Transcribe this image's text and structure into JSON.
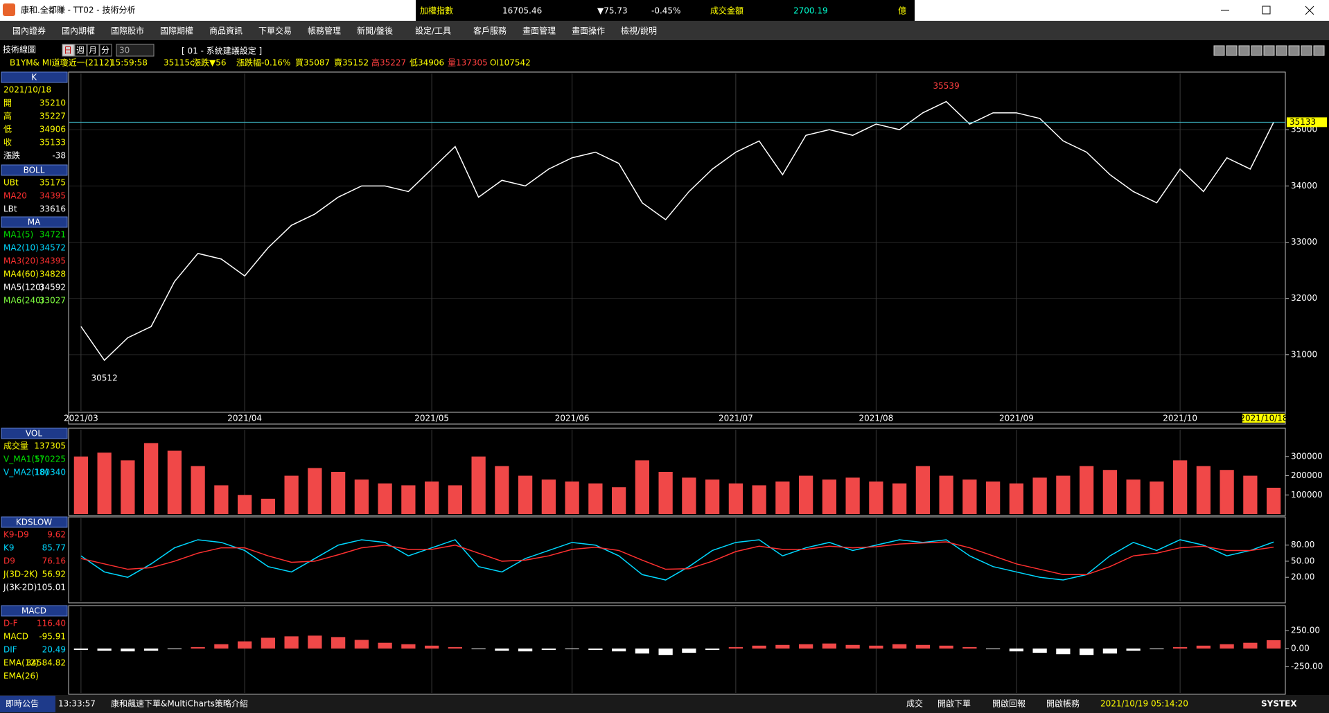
{
  "title_bar": {
    "app": "康和.全都賺 - TT02 - 技術分析"
  },
  "ticker": {
    "name": "加權指數",
    "index": "16705.46",
    "change": "▼75.73",
    "pct": "-0.45%",
    "turnover_label": "成交金額",
    "turnover": "2700.19",
    "unit": "億"
  },
  "menu": [
    "國內證券",
    "國內期權",
    "國際股市",
    "國際期權",
    "商品資訊",
    "下單交易",
    "帳務管理",
    "新聞/盤後",
    "設定/工具",
    "客戶服務",
    "畫面管理",
    "畫面操作",
    "檢視/說明"
  ],
  "info": {
    "panel_title": "技術線圖",
    "periods": [
      "日",
      "週",
      "月",
      "分"
    ],
    "interval": "30",
    "setting": "[ 01 - 系統建議設定 ]",
    "symbol": "B1YM&  MI道瓊近一(2112)",
    "time": "15:59:58",
    "fields": [
      "35115c",
      "漲跌▼56",
      "漲跌幅-0.16%",
      "買35087",
      "賣35152",
      "高35227",
      "低34906",
      "量137305",
      "OI107542"
    ]
  },
  "side_panel": [
    {
      "title": "K",
      "date": "2021/10/18",
      "rows": [
        {
          "label": "開",
          "value": "35210",
          "color": "#ffff00"
        },
        {
          "label": "高",
          "value": "35227",
          "color": "#ffff00"
        },
        {
          "label": "低",
          "value": "34906",
          "color": "#ffff00"
        },
        {
          "label": "收",
          "value": "35133",
          "color": "#ffff00"
        },
        {
          "label": "漲跌",
          "value": "-38",
          "color": "#ffffff"
        }
      ]
    },
    {
      "title": "BOLL",
      "rows": [
        {
          "label": "UBt",
          "value": "35175",
          "color": "#ffff00"
        },
        {
          "label": "MA20",
          "value": "34395",
          "color": "#ff3030"
        },
        {
          "label": "LBt",
          "value": "33616",
          "color": "#ffffff"
        }
      ]
    },
    {
      "title": "MA",
      "rows": [
        {
          "label": "MA1(5)",
          "value": "34721",
          "color": "#00e000"
        },
        {
          "label": "MA2(10)",
          "value": "34572",
          "color": "#00d8ff"
        },
        {
          "label": "MA3(20)",
          "value": "34395",
          "color": "#ff3030"
        },
        {
          "label": "MA4(60)",
          "value": "34828",
          "color": "#ffff00"
        },
        {
          "label": "MA5(120)",
          "value": "34592",
          "color": "#ffffff"
        },
        {
          "label": "MA6(240)",
          "value": "33027",
          "color": "#80ff40"
        }
      ]
    },
    {
      "title": "VOL",
      "rows": [
        {
          "label": "成交量",
          "value": "137305",
          "color": "#ffff00"
        },
        {
          "label": "V_MA1(5)",
          "value": "170225",
          "color": "#00e000"
        },
        {
          "label": "V_MA2(10)",
          "value": "180340",
          "color": "#00d8ff"
        }
      ]
    },
    {
      "title": "KDSLOW",
      "rows": [
        {
          "label": "K9-D9",
          "value": "9.62",
          "color": "#ff3030"
        },
        {
          "label": "K9",
          "value": "85.77",
          "color": "#00d8ff"
        },
        {
          "label": "D9",
          "value": "76.16",
          "color": "#ff3030"
        },
        {
          "label": "J(3D-2K)",
          "value": "56.92",
          "color": "#ffff00"
        },
        {
          "label": "J(3K-2D)",
          "value": "105.01",
          "color": "#ffffff"
        }
      ]
    },
    {
      "title": "MACD",
      "rows": [
        {
          "label": "D-F",
          "value": "116.40",
          "color": "#ff3030"
        },
        {
          "label": "MACD",
          "value": "-95.91",
          "color": "#ffff00"
        },
        {
          "label": "DIF",
          "value": "20.49",
          "color": "#00d8ff"
        },
        {
          "label": "EMA(12)",
          "value": "34584.82",
          "color": "#ffff00"
        },
        {
          "label": "EMA(26)",
          "value": "",
          "color": "#ffff00"
        }
      ]
    }
  ],
  "chart_data": [
    {
      "type": "line",
      "grid": true,
      "categories": [
        "2021/03",
        null,
        null,
        null,
        null,
        null,
        null,
        "2021/04",
        null,
        null,
        null,
        null,
        null,
        null,
        null,
        "2021/05",
        null,
        null,
        null,
        null,
        null,
        "2021/06",
        null,
        null,
        null,
        null,
        null,
        null,
        "2021/07",
        null,
        null,
        null,
        null,
        null,
        "2021/08",
        null,
        null,
        null,
        null,
        null,
        "2021/09",
        null,
        null,
        null,
        null,
        null,
        null,
        "2021/10",
        null,
        null,
        null,
        "2021/10/18"
      ],
      "series": [
        {
          "name": "收",
          "color": "#ffffff",
          "values": [
            31500,
            30900,
            31300,
            31500,
            32300,
            32800,
            32700,
            32400,
            32900,
            33300,
            33500,
            33800,
            34000,
            34000,
            33900,
            34300,
            34700,
            33800,
            34100,
            34000,
            34300,
            34500,
            34600,
            34400,
            33700,
            33400,
            33900,
            34300,
            34600,
            34800,
            34200,
            34900,
            35000,
            34900,
            35100,
            35000,
            35300,
            35500,
            35100,
            35300,
            35300,
            35200,
            34800,
            34600,
            34200,
            33900,
            33700,
            34300,
            33900,
            34500,
            34300,
            35133
          ]
        }
      ],
      "ylim": [
        30000,
        36000
      ],
      "yticks": [
        31000,
        32000,
        33000,
        34000,
        35000
      ],
      "annotations": {
        "high": "35539",
        "low": "30512",
        "last": "35133"
      }
    },
    {
      "type": "bar",
      "color": "#f04848",
      "series": [
        {
          "name": "成交量",
          "color": "#f04848",
          "values": [
            300000,
            320000,
            280000,
            370000,
            330000,
            250000,
            150000,
            100000,
            80000,
            200000,
            240000,
            220000,
            180000,
            160000,
            150000,
            170000,
            150000,
            300000,
            250000,
            200000,
            180000,
            170000,
            160000,
            140000,
            280000,
            220000,
            190000,
            180000,
            160000,
            150000,
            170000,
            200000,
            180000,
            190000,
            170000,
            160000,
            250000,
            200000,
            180000,
            170000,
            160000,
            190000,
            200000,
            250000,
            230000,
            180000,
            170000,
            280000,
            250000,
            230000,
            200000,
            137305
          ]
        }
      ],
      "ylim": [
        0,
        440000
      ],
      "yticks": [
        100000,
        200000,
        300000
      ]
    },
    {
      "type": "line",
      "series": [
        {
          "name": "K9",
          "color": "#00d8ff",
          "values": [
            60,
            30,
            20,
            45,
            75,
            90,
            85,
            70,
            40,
            30,
            55,
            80,
            90,
            85,
            60,
            75,
            90,
            40,
            30,
            55,
            70,
            85,
            80,
            60,
            25,
            15,
            40,
            70,
            85,
            90,
            60,
            75,
            85,
            70,
            80,
            90,
            85,
            90,
            60,
            40,
            30,
            20,
            15,
            25,
            60,
            85,
            70,
            90,
            80,
            60,
            70,
            85.77
          ]
        },
        {
          "name": "D9",
          "color": "#ff3030",
          "values": [
            55,
            45,
            35,
            38,
            50,
            65,
            75,
            75,
            60,
            48,
            50,
            62,
            75,
            80,
            72,
            72,
            80,
            65,
            50,
            52,
            60,
            72,
            76,
            70,
            52,
            35,
            36,
            50,
            68,
            78,
            72,
            72,
            78,
            75,
            77,
            82,
            84,
            86,
            75,
            60,
            45,
            35,
            25,
            25,
            40,
            60,
            65,
            75,
            78,
            70,
            70,
            76.16
          ]
        }
      ],
      "ylim": [
        -25,
        130
      ],
      "yticks": [
        {
          "value": 20,
          "label": "20.00"
        },
        {
          "value": 50,
          "label": "50.00"
        },
        {
          "value": 80,
          "label": "80.00"
        }
      ]
    },
    {
      "type": "bar",
      "color": "#f04848",
      "series": [
        {
          "name": "D-F",
          "color": "#f04848",
          "values": [
            -20,
            -30,
            -40,
            -30,
            -10,
            20,
            60,
            100,
            150,
            170,
            180,
            160,
            120,
            80,
            60,
            40,
            20,
            -10,
            -30,
            -40,
            -20,
            -10,
            -20,
            -40,
            -70,
            -90,
            -60,
            -20,
            20,
            40,
            50,
            60,
            70,
            50,
            40,
            60,
            50,
            40,
            20,
            -10,
            -40,
            -60,
            -80,
            -90,
            -70,
            -30,
            -10,
            20,
            40,
            60,
            80,
            116.4
          ]
        }
      ],
      "ylim": [
        -620,
        580
      ],
      "yticks": [
        {
          "value": 250,
          "label": "250.00"
        },
        {
          "value": 0,
          "label": "0.00"
        },
        {
          "value": -250,
          "label": "-250.00"
        }
      ]
    }
  ],
  "status_bar": {
    "notice": "即時公告",
    "time": "13:33:57",
    "message": "康和飆速下單&MultiCharts策略介紹",
    "buttons": [
      "成交",
      "開啟下單",
      "開啟回報",
      "開啟帳務"
    ],
    "datetime": "2021/10/19 05:14:20",
    "brand": "SYSTEX"
  }
}
